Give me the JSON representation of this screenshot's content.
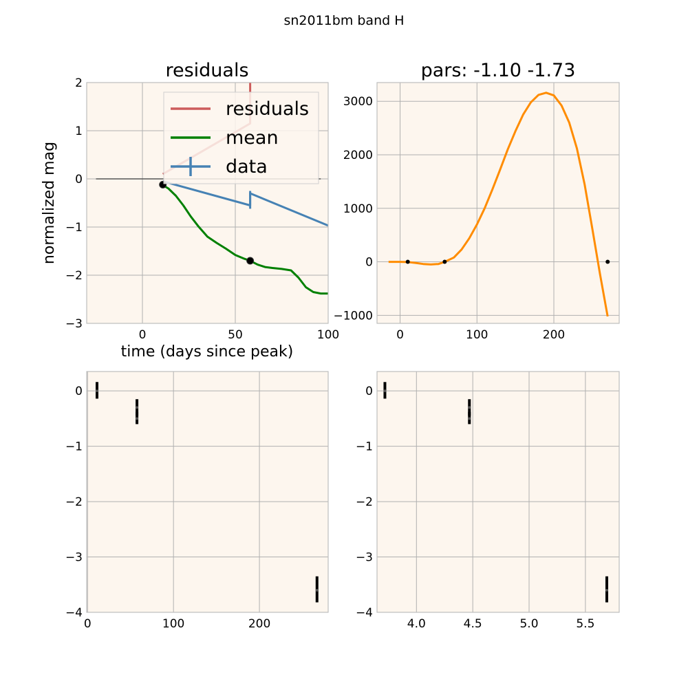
{
  "figure": {
    "suptitle": "sn2011bm band H"
  },
  "chart_data": [
    {
      "type": "line",
      "title": "residuals",
      "xlabel": "time (days since peak)",
      "ylabel": "normalized mag",
      "xlim": [
        -30,
        100
      ],
      "ylim": [
        -3,
        2
      ],
      "xticks": [
        0,
        50,
        100
      ],
      "yticks": [
        2,
        1,
        0,
        -1,
        -2,
        -3
      ],
      "grid": true,
      "legend": {
        "placement": "top-right",
        "entries": [
          "residuals",
          "mean",
          "data"
        ]
      },
      "series": [
        {
          "name": "residuals",
          "color": "#cd5c5c",
          "x": [
            11,
            58,
            58,
            58.5
          ],
          "y": [
            0.1,
            1.15,
            2.0,
            2.4
          ]
        },
        {
          "name": "mean",
          "color": "#008000",
          "x": [
            11,
            14,
            18,
            22,
            26,
            30,
            35,
            40,
            45,
            50,
            55,
            58,
            62,
            66,
            70,
            75,
            80,
            84,
            88,
            92,
            96,
            100
          ],
          "y": [
            -0.13,
            -0.2,
            -0.35,
            -0.55,
            -0.78,
            -0.98,
            -1.2,
            -1.33,
            -1.45,
            -1.58,
            -1.66,
            -1.7,
            -1.78,
            -1.83,
            -1.85,
            -1.87,
            -1.9,
            -2.05,
            -2.25,
            -2.35,
            -2.38,
            -2.38
          ]
        },
        {
          "name": "data",
          "color": "#4682b4",
          "x": [
            11,
            58,
            58,
            100
          ],
          "y": [
            -0.05,
            -0.55,
            -0.3,
            -0.97
          ],
          "errorbars": [
            {
              "x": 58,
              "y_low": -0.62,
              "y_high": -0.25
            }
          ]
        },
        {
          "name": "",
          "color": "#555555",
          "x": [
            -25,
            96
          ],
          "y": [
            0,
            0
          ]
        }
      ],
      "points": [
        {
          "x": 11,
          "y": -0.12
        },
        {
          "x": 58,
          "y": -1.7
        }
      ]
    },
    {
      "type": "line",
      "title": "pars: -1.10 -1.73",
      "xlim": [
        -30,
        285
      ],
      "ylim": [
        -1150,
        3350
      ],
      "xticks": [
        0,
        100,
        200
      ],
      "yticks": [
        3000,
        2000,
        1000,
        0,
        -1000
      ],
      "grid": true,
      "series": [
        {
          "name": "",
          "color": "#ff8c00",
          "x": [
            -15,
            0,
            10,
            20,
            30,
            40,
            50,
            58,
            70,
            80,
            90,
            100,
            110,
            120,
            130,
            140,
            150,
            160,
            170,
            180,
            190,
            200,
            210,
            220,
            230,
            240,
            250,
            260,
            270
          ],
          "y": [
            0,
            0,
            -5,
            -20,
            -40,
            -50,
            -40,
            0,
            80,
            230,
            440,
            700,
            1000,
            1350,
            1720,
            2100,
            2440,
            2750,
            2980,
            3120,
            3160,
            3110,
            2920,
            2600,
            2120,
            1450,
            620,
            -230,
            -1020
          ]
        }
      ],
      "points": [
        {
          "x": 10,
          "y": 0
        },
        {
          "x": 58,
          "y": 0
        },
        {
          "x": 270,
          "y": 0
        }
      ]
    },
    {
      "type": "scatter",
      "xlim": [
        -1,
        280
      ],
      "ylim": [
        -4.0,
        0.35
      ],
      "xticks": [
        0,
        100,
        200
      ],
      "yticks": [
        0,
        -1,
        -2,
        -3,
        -4
      ],
      "grid": true,
      "errorbars": [
        {
          "x": 11,
          "y": 0.0,
          "y_low": -0.14,
          "y_high": 0.16
        },
        {
          "x": 57.5,
          "y": -0.3,
          "y_low": -0.45,
          "y_high": -0.15
        },
        {
          "x": 57.5,
          "y": -0.5,
          "y_low": -0.6,
          "y_high": -0.38
        },
        {
          "x": 267,
          "y": -3.6,
          "y_low": -3.82,
          "y_high": -3.35
        }
      ]
    },
    {
      "type": "scatter",
      "xlim": [
        3.65,
        5.8
      ],
      "ylim": [
        -4.0,
        0.35
      ],
      "xticks": [
        4.0,
        4.5,
        5.0,
        5.5
      ],
      "xtick_labels": [
        "4.0",
        "4.5",
        "5.0",
        "5.5"
      ],
      "yticks": [
        0,
        -1,
        -2,
        -3,
        -4
      ],
      "grid": true,
      "errorbars": [
        {
          "x": 3.72,
          "y": 0.0,
          "y_low": -0.14,
          "y_high": 0.16
        },
        {
          "x": 4.47,
          "y": -0.3,
          "y_low": -0.45,
          "y_high": -0.15
        },
        {
          "x": 4.47,
          "y": -0.5,
          "y_low": -0.6,
          "y_high": -0.38
        },
        {
          "x": 5.69,
          "y": -3.6,
          "y_low": -3.82,
          "y_high": -3.35
        }
      ]
    }
  ]
}
